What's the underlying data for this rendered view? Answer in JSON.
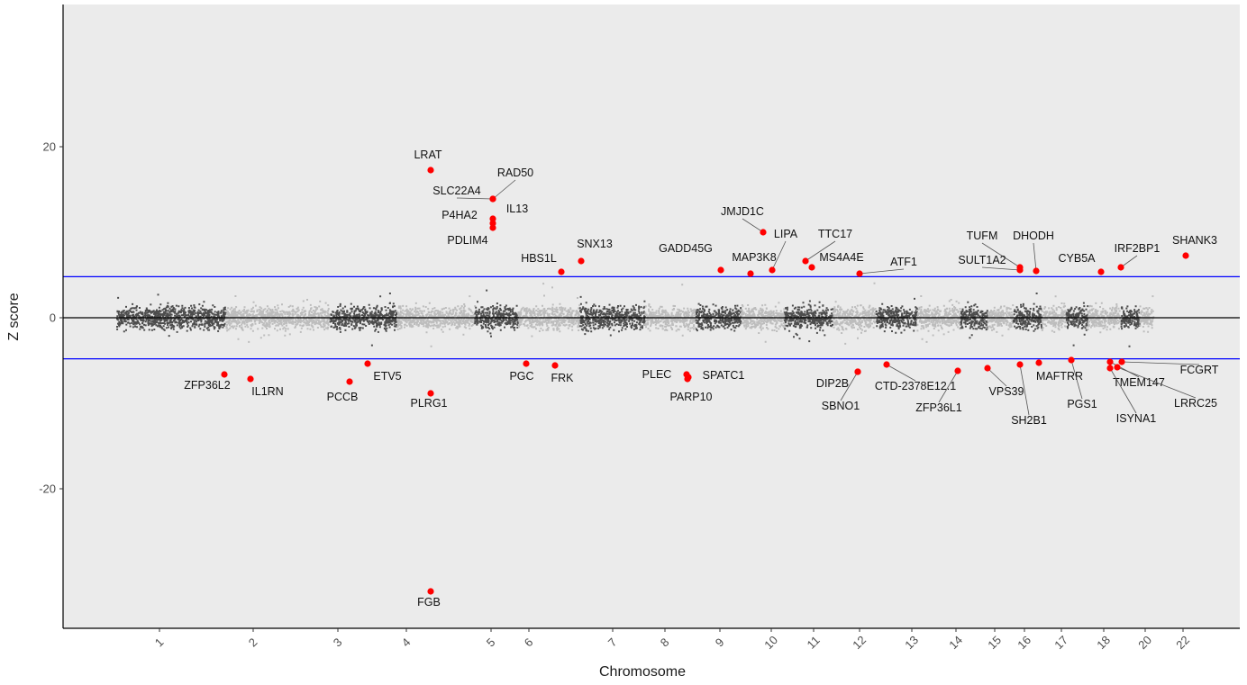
{
  "chart_data": {
    "type": "scatter",
    "subtype": "manhattan",
    "xlabel": "Chromosome",
    "ylabel": "Z score",
    "ylim": [
      -36,
      37
    ],
    "y_ticks": [
      20,
      0,
      -20
    ],
    "y_tick_labels": [
      "20",
      "0",
      "-20"
    ],
    "x_tick_labels": [
      "1",
      "2",
      "3",
      "4",
      "5",
      "6",
      "7",
      "8",
      "9",
      "10",
      "11",
      "12",
      "13",
      "14",
      "15",
      "16",
      "17",
      "18",
      "20",
      "22"
    ],
    "x_tick_positions": [
      1,
      2,
      3,
      4,
      5,
      6,
      7,
      8,
      9,
      10,
      11,
      12,
      13,
      14,
      15,
      16,
      17,
      18,
      20,
      22
    ],
    "x_range": [
      0.0,
      23.0
    ],
    "threshold_lines": [
      4.8,
      -4.8
    ],
    "zero_line": 0,
    "grid": false,
    "legend": "none",
    "panel_background": "#ebebeb",
    "colors": {
      "dark_points": "#4d4d4d",
      "light_points": "#bdbdbd",
      "highlight": "#ff0000",
      "threshold": "#0000ff",
      "zero_line": "#000000"
    },
    "chromosome_spans": [
      {
        "chr": "1",
        "start": 0.55,
        "end": 1.1,
        "shade": "dark"
      },
      {
        "chr": "1",
        "start": 1.1,
        "end": 1.7,
        "shade": "dark"
      },
      {
        "chr": "2",
        "start": 1.7,
        "end": 2.9,
        "shade": "light"
      },
      {
        "chr": "3",
        "start": 2.9,
        "end": 3.3,
        "shade": "dark"
      },
      {
        "chr": "3",
        "start": 3.3,
        "end": 3.85,
        "shade": "dark"
      },
      {
        "chr": "4",
        "start": 3.85,
        "end": 4.8,
        "shade": "light"
      },
      {
        "chr": "5",
        "start": 4.8,
        "end": 5.7,
        "shade": "dark"
      },
      {
        "chr": "6",
        "start": 5.7,
        "end": 6.6,
        "shade": "light"
      },
      {
        "chr": "7",
        "start": 6.6,
        "end": 7.6,
        "shade": "dark"
      },
      {
        "chr": "8",
        "start": 7.6,
        "end": 8.55,
        "shade": "light"
      },
      {
        "chr": "8",
        "start": 8.55,
        "end": 8.85,
        "shade": "dark"
      },
      {
        "chr": "9",
        "start": 8.85,
        "end": 9.4,
        "shade": "dark"
      },
      {
        "chr": "10",
        "start": 9.4,
        "end": 10.3,
        "shade": "light"
      },
      {
        "chr": "11",
        "start": 10.3,
        "end": 11.4,
        "shade": "dark"
      },
      {
        "chr": "12",
        "start": 11.4,
        "end": 12.3,
        "shade": "light"
      },
      {
        "chr": "13",
        "start": 12.3,
        "end": 13.1,
        "shade": "dark"
      },
      {
        "chr": "14",
        "start": 13.1,
        "end": 14.1,
        "shade": "light"
      },
      {
        "chr": "15",
        "start": 14.1,
        "end": 14.8,
        "shade": "dark"
      },
      {
        "chr": "16",
        "start": 14.8,
        "end": 15.6,
        "shade": "light"
      },
      {
        "chr": "17",
        "start": 15.6,
        "end": 16.45,
        "shade": "dark"
      },
      {
        "chr": "18",
        "start": 16.45,
        "end": 17.1,
        "shade": "light"
      },
      {
        "chr": "19",
        "start": 17.1,
        "end": 17.6,
        "shade": "dark"
      },
      {
        "chr": "20",
        "start": 17.6,
        "end": 18.4,
        "shade": "light"
      },
      {
        "chr": "21",
        "start": 18.4,
        "end": 18.85,
        "shade": "dark"
      },
      {
        "chr": "22",
        "start": 18.85,
        "end": 19.2,
        "shade": "light"
      }
    ],
    "highlighted_genes": [
      {
        "gene": "LRAT",
        "x": 4.25,
        "y": 17.2
      },
      {
        "gene": "RAD50",
        "x": 5.0,
        "y": 13.8
      },
      {
        "gene": "SLC22A4",
        "x": 5.0,
        "y": 13.8
      },
      {
        "gene": "IL13",
        "x": 5.0,
        "y": 11.5
      },
      {
        "gene": "P4HA2",
        "x": 5.0,
        "y": 11.0
      },
      {
        "gene": "PDLIM4",
        "x": 5.0,
        "y": 10.4
      },
      {
        "gene": "SNX13",
        "x": 6.3,
        "y": 6.5
      },
      {
        "gene": "HBS1L",
        "x": 6.1,
        "y": 5.3
      },
      {
        "gene": "GADD45G",
        "x": 8.9,
        "y": 5.5
      },
      {
        "gene": "JMJD1C",
        "x": 9.8,
        "y": 10.0
      },
      {
        "gene": "MAP3K8",
        "x": 9.5,
        "y": 5.1
      },
      {
        "gene": "LIPA",
        "x": 10.0,
        "y": 5.5
      },
      {
        "gene": "TTC17",
        "x": 10.7,
        "y": 6.5
      },
      {
        "gene": "MS4A4E",
        "x": 10.85,
        "y": 5.8
      },
      {
        "gene": "ATF1",
        "x": 11.9,
        "y": 5.1
      },
      {
        "gene": "TUFM",
        "x": 15.75,
        "y": 5.9
      },
      {
        "gene": "SULT1A2",
        "x": 15.75,
        "y": 5.5
      },
      {
        "gene": "DHODH",
        "x": 16.1,
        "y": 5.5
      },
      {
        "gene": "CYB5A",
        "x": 16.8,
        "y": 5.2
      },
      {
        "gene": "IRF2BP1",
        "x": 17.2,
        "y": 5.8
      },
      {
        "gene": "SHANK3",
        "x": 18.6,
        "y": 7.3
      },
      {
        "gene": "ZFP36L2",
        "x": 1.55,
        "y": -6.8
      },
      {
        "gene": "IL1RN",
        "x": 1.95,
        "y": -7.3
      },
      {
        "gene": "PCCB",
        "x": 3.1,
        "y": -7.6
      },
      {
        "gene": "ETV5",
        "x": 3.35,
        "y": -5.3
      },
      {
        "gene": "PLRG1",
        "x": 4.25,
        "y": -8.9
      },
      {
        "gene": "FGB",
        "x": 4.25,
        "y": -32.0
      },
      {
        "gene": "PGC",
        "x": 5.8,
        "y": -5.3
      },
      {
        "gene": "FRK",
        "x": 6.3,
        "y": -5.7
      },
      {
        "gene": "PLEC",
        "x": 8.2,
        "y": -6.8
      },
      {
        "gene": "SPATC1",
        "x": 8.2,
        "y": -7.2
      },
      {
        "gene": "PARP10",
        "x": 8.2,
        "y": -7.6
      },
      {
        "gene": "DIP2B",
        "x": 11.9,
        "y": -6.3
      },
      {
        "gene": "SBNO1",
        "x": 11.9,
        "y": -6.3
      },
      {
        "gene": "CTD-2378E12.1",
        "x": 12.45,
        "y": -5.5
      },
      {
        "gene": "ZFP36L1",
        "x": 14.0,
        "y": -6.2
      },
      {
        "gene": "VPS39",
        "x": 14.7,
        "y": -6.0
      },
      {
        "gene": "SH2B1",
        "x": 15.75,
        "y": -5.5
      },
      {
        "gene": "MAFTRR",
        "x": 15.8,
        "y": -5.2
      },
      {
        "gene": "PGS1",
        "x": 16.3,
        "y": -5.0
      },
      {
        "gene": "TMEM147",
        "x": 16.95,
        "y": -5.2
      },
      {
        "gene": "ISYNA1",
        "x": 16.95,
        "y": -6.0
      },
      {
        "gene": "LRRC25",
        "x": 17.05,
        "y": -5.9
      },
      {
        "gene": "FCGRT",
        "x": 17.2,
        "y": -5.3
      }
    ]
  }
}
